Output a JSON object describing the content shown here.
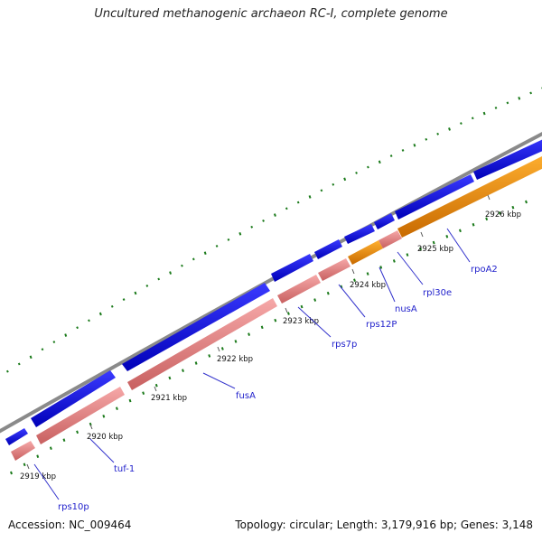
{
  "title": "Uncultured methanogenic archaeon RC-I, complete genome",
  "footer": {
    "accession": "Accession: NC_009464",
    "summary": "Topology: circular; Length: 3,179,916 bp; Genes: 3,148"
  },
  "colors": {
    "backbone": "#8a8a8a",
    "forward_cds": "#1a1aee",
    "reverse_cds": "#ee8888",
    "reverse_rna": "#ff9900",
    "gc_dots": "#1a7a1a",
    "label_text": "#2222cc",
    "label_line": "#3333cc"
  },
  "scale_ticks": [
    "2919 kbp",
    "2920 kbp",
    "2921 kbp",
    "2922 kbp",
    "2923 kbp",
    "2924 kbp",
    "2925 kbp",
    "2926 kbp"
  ],
  "gene_labels": [
    "rps10p",
    "tuf-1",
    "fusA",
    "rps7p",
    "rps12P",
    "nusA",
    "rpl30e",
    "rpoA2"
  ]
}
